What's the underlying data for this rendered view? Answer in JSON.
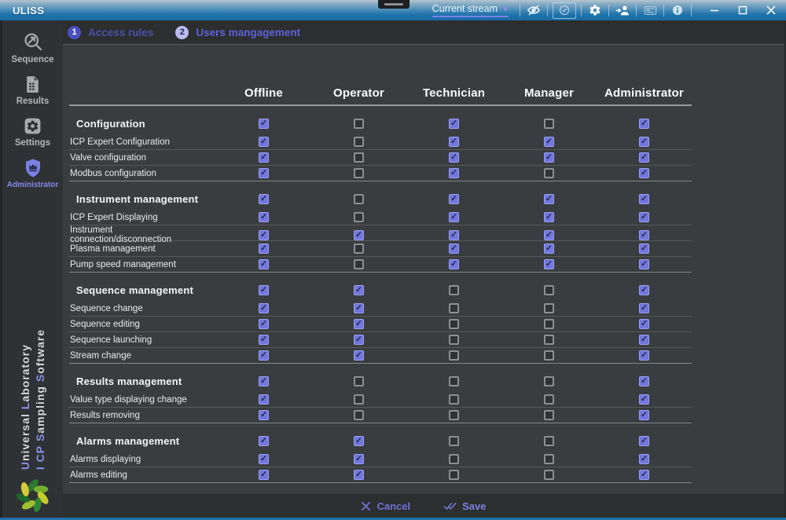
{
  "window": {
    "title": "ULISS"
  },
  "titlebar": {
    "stream_selector": {
      "label": "Current stream"
    },
    "icons": [
      "visibility-off-icon",
      "check-circle-icon",
      "gear-icon",
      "switch-user-icon",
      "card-icon",
      "info-icon"
    ],
    "window_controls": [
      "minimize",
      "maximize",
      "close"
    ]
  },
  "steps": [
    {
      "number": "1",
      "label": "Access rules",
      "active": false
    },
    {
      "number": "2",
      "label": "Users mangagement",
      "active": true
    }
  ],
  "sidebar": {
    "items": [
      {
        "label": "Sequence",
        "icon": "sequence-search-icon",
        "active": false
      },
      {
        "label": "Results",
        "icon": "results-document-icon",
        "active": false
      },
      {
        "label": "Settings",
        "icon": "settings-gear-icon",
        "active": false
      },
      {
        "label": "Administrator",
        "icon": "administrator-shield-icon",
        "active": true
      }
    ],
    "branding": {
      "lines": [
        [
          {
            "t": "U",
            "a": true
          },
          {
            "t": "niversal",
            "a": false
          },
          {
            "t": " ",
            "a": false
          },
          {
            "t": "L",
            "a": true
          },
          {
            "t": "aboratory",
            "a": false
          }
        ],
        [
          {
            "t": "I",
            "a": true
          },
          {
            "t": " ",
            "a": false
          },
          {
            "t": "CP",
            "a": true
          },
          {
            "t": " ",
            "a": false
          },
          {
            "t": "S",
            "a": true
          },
          {
            "t": "ampling",
            "a": false
          },
          {
            "t": " ",
            "a": false
          },
          {
            "t": "S",
            "a": true
          },
          {
            "t": "oftware",
            "a": false
          }
        ]
      ]
    },
    "logo": "uliss-wreath-logo"
  },
  "permissions": {
    "columns": [
      "Offline",
      "Operator",
      "Technician",
      "Manager",
      "Administrator"
    ],
    "groups": [
      {
        "name": "Configuration",
        "checks": [
          true,
          false,
          true,
          false,
          true
        ],
        "rows": [
          {
            "label": "ICP Expert Configuration",
            "checks": [
              true,
              false,
              true,
              true,
              true
            ]
          },
          {
            "label": "Valve configuration",
            "checks": [
              true,
              false,
              true,
              true,
              true
            ]
          },
          {
            "label": "Modbus configuration",
            "checks": [
              true,
              false,
              true,
              false,
              true
            ]
          }
        ]
      },
      {
        "name": "Instrument management",
        "checks": [
          true,
          false,
          true,
          true,
          true
        ],
        "rows": [
          {
            "label": "ICP Expert Displaying",
            "checks": [
              true,
              false,
              true,
              true,
              true
            ]
          },
          {
            "label": "Instrument connection/disconnection",
            "checks": [
              true,
              true,
              true,
              true,
              true
            ]
          },
          {
            "label": "Plasma management",
            "checks": [
              true,
              false,
              true,
              true,
              true
            ]
          },
          {
            "label": "Pump speed management",
            "checks": [
              true,
              false,
              true,
              true,
              true
            ]
          }
        ]
      },
      {
        "name": "Sequence management",
        "checks": [
          true,
          true,
          false,
          false,
          true
        ],
        "rows": [
          {
            "label": "Sequence change",
            "checks": [
              true,
              true,
              false,
              false,
              true
            ]
          },
          {
            "label": "Sequence editing",
            "checks": [
              true,
              true,
              false,
              false,
              true
            ]
          },
          {
            "label": "Sequence launching",
            "checks": [
              true,
              true,
              false,
              false,
              true
            ]
          },
          {
            "label": "Stream change",
            "checks": [
              true,
              true,
              false,
              false,
              true
            ]
          }
        ]
      },
      {
        "name": "Results management",
        "checks": [
          true,
          false,
          false,
          false,
          true
        ],
        "rows": [
          {
            "label": "Value type displaying change",
            "checks": [
              true,
              false,
              false,
              false,
              true
            ]
          },
          {
            "label": "Results removing",
            "checks": [
              true,
              false,
              false,
              false,
              true
            ]
          }
        ]
      },
      {
        "name": "Alarms management",
        "checks": [
          true,
          true,
          false,
          false,
          true
        ],
        "rows": [
          {
            "label": "Alarms displaying",
            "checks": [
              true,
              true,
              false,
              false,
              true
            ]
          },
          {
            "label": "Alarms editing",
            "checks": [
              true,
              true,
              false,
              false,
              true
            ]
          }
        ]
      }
    ]
  },
  "footer": {
    "cancel_label": "Cancel",
    "save_label": "Save"
  },
  "colors": {
    "accent_purple": "#7177dd",
    "titlebar_blue": "#1e73ab",
    "content_bg": "#3a3d40",
    "bar_bg": "#2c2e30",
    "sidebar_bg": "#2f3235",
    "step_active": "#5d63d8"
  }
}
